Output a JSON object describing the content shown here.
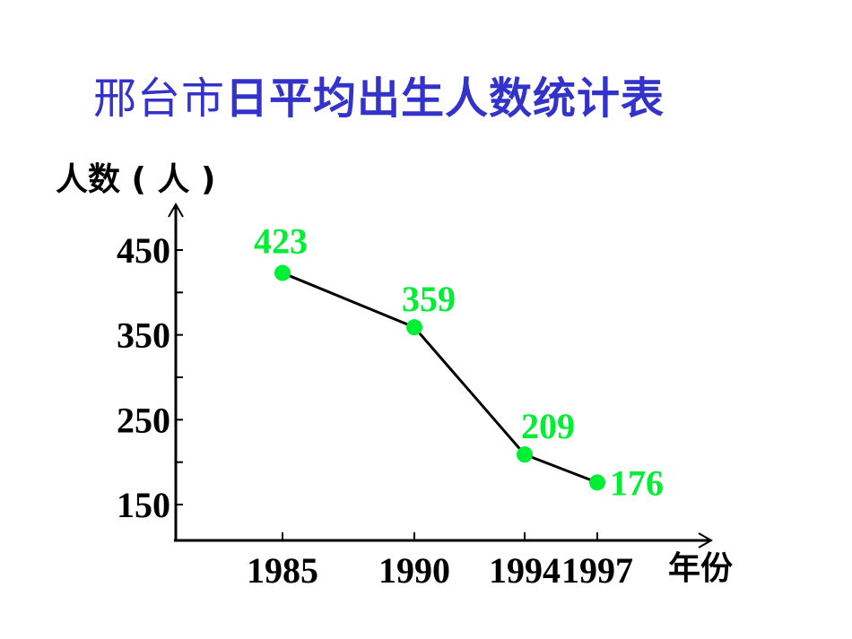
{
  "header": {
    "title_part1": "邢台市",
    "title_part2": "日平均出生人数统计表"
  },
  "colors": {
    "title": "#3333cc",
    "data_points": "#00ee33",
    "line": "#000000",
    "axes": "#000000"
  },
  "chart_data": {
    "type": "line",
    "title": "邢台市日平均出生人数统计表",
    "xlabel": "年份",
    "ylabel": "人数 ( 人 )",
    "categories": [
      "1985",
      "1990",
      "1994",
      "1997"
    ],
    "x": [
      1985,
      1990,
      1994,
      1997
    ],
    "series": [
      {
        "name": "日平均出生人数",
        "values": [
          423,
          359,
          209,
          176
        ]
      }
    ],
    "data_labels": [
      "423",
      "359",
      "209",
      "176"
    ],
    "y_ticks": [
      "450",
      "350",
      "250",
      "150"
    ],
    "y_tick_values": [
      450,
      350,
      250,
      150
    ],
    "y_minor_ticks": [
      400,
      300,
      200
    ],
    "ylim": [
      108,
      500
    ],
    "grid": false,
    "legend": null
  },
  "axes": {
    "y_label": "人数 ( 人 )",
    "x_label": "年份"
  }
}
